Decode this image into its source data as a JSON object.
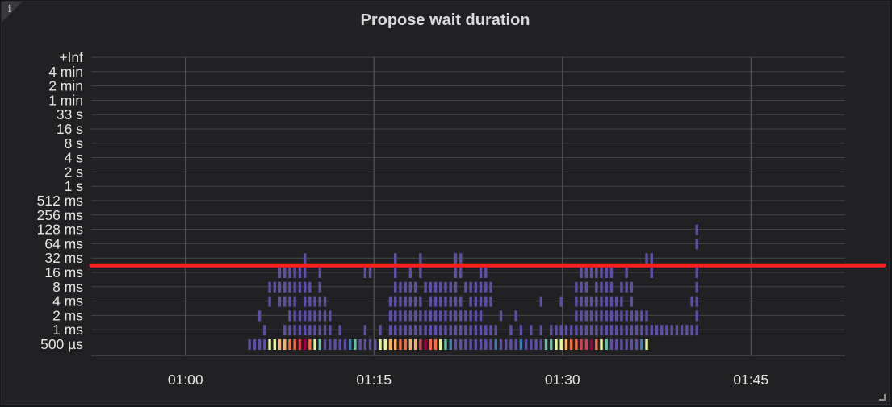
{
  "panel": {
    "title": "Propose wait duration",
    "info_icon": "info-icon",
    "info_glyph": "i"
  },
  "chart_data": {
    "type": "heatmap",
    "title": "Propose wait duration",
    "y_buckets": [
      "500 µs",
      "1 ms",
      "2 ms",
      "4 ms",
      "8 ms",
      "16 ms",
      "32 ms",
      "64 ms",
      "128 ms",
      "256 ms",
      "512 ms",
      "1 s",
      "2 s",
      "4 s",
      "8 s",
      "16 s",
      "33 s",
      "1 min",
      "2 min",
      "4 min",
      "+Inf"
    ],
    "x_ticks": [
      {
        "label": "01:00",
        "t": 60
      },
      {
        "label": "01:15",
        "t": 75
      },
      {
        "label": "01:30",
        "t": 90
      },
      {
        "label": "01:45",
        "t": 105
      }
    ],
    "x_range_minutes": [
      52.5,
      112.5
    ],
    "time_step_minutes": 0.4,
    "first_column_minute": 65.1,
    "threshold_bucket": "32 ms",
    "threshold_color": "#ff1f1f",
    "bottom_row_levels": [
      1,
      1,
      1,
      1,
      4,
      4,
      5,
      5,
      6,
      6,
      7,
      8,
      6,
      4,
      3,
      1,
      1,
      1,
      1,
      1,
      2,
      3,
      1,
      1,
      1,
      1,
      4,
      4,
      5,
      5,
      6,
      6,
      5,
      5,
      7,
      8,
      6,
      6,
      4,
      3,
      2,
      1,
      1,
      1,
      1,
      1,
      1,
      1,
      1,
      2,
      1,
      1,
      1,
      1,
      2,
      1,
      1,
      1,
      1,
      3,
      3,
      4,
      4,
      5,
      6,
      6,
      7,
      7,
      8,
      6,
      4,
      3,
      1,
      1,
      1,
      1,
      1,
      1,
      2,
      4
    ],
    "cells": [
      [
        3,
        1
      ],
      [
        7,
        1
      ],
      [
        8,
        1
      ],
      [
        9,
        1
      ],
      [
        10,
        1
      ],
      [
        11,
        1
      ],
      [
        12,
        1
      ],
      [
        13,
        1
      ],
      [
        14,
        1
      ],
      [
        15,
        1
      ],
      [
        16,
        1
      ],
      [
        18,
        1
      ],
      [
        23,
        1
      ],
      [
        26,
        1
      ],
      [
        28,
        1
      ],
      [
        29,
        1
      ],
      [
        30,
        1
      ],
      [
        31,
        1
      ],
      [
        32,
        1
      ],
      [
        33,
        1
      ],
      [
        34,
        1
      ],
      [
        35,
        1
      ],
      [
        36,
        1
      ],
      [
        37,
        1
      ],
      [
        38,
        1
      ],
      [
        39,
        1
      ],
      [
        40,
        1
      ],
      [
        41,
        1
      ],
      [
        42,
        1
      ],
      [
        43,
        1
      ],
      [
        44,
        1
      ],
      [
        45,
        1
      ],
      [
        46,
        1
      ],
      [
        47,
        1
      ],
      [
        48,
        1
      ],
      [
        49,
        1
      ],
      [
        52,
        1
      ],
      [
        54,
        1
      ],
      [
        56,
        1
      ],
      [
        58,
        1
      ],
      [
        60,
        1
      ],
      [
        61,
        1
      ],
      [
        62,
        1
      ],
      [
        63,
        1
      ],
      [
        64,
        1
      ],
      [
        65,
        1
      ],
      [
        66,
        1
      ],
      [
        67,
        1
      ],
      [
        68,
        1
      ],
      [
        69,
        1
      ],
      [
        70,
        1
      ],
      [
        71,
        1
      ],
      [
        72,
        1
      ],
      [
        73,
        1
      ],
      [
        74,
        1
      ],
      [
        75,
        1
      ],
      [
        76,
        1
      ],
      [
        77,
        1
      ],
      [
        78,
        1
      ],
      [
        79,
        1
      ],
      [
        80,
        1
      ],
      [
        81,
        1
      ],
      [
        82,
        1
      ],
      [
        83,
        1
      ],
      [
        84,
        1
      ],
      [
        85,
        1
      ],
      [
        86,
        1
      ],
      [
        87,
        1
      ],
      [
        88,
        1
      ],
      [
        89,
        1
      ],
      [
        2,
        2
      ],
      [
        8,
        2
      ],
      [
        9,
        2
      ],
      [
        10,
        2
      ],
      [
        11,
        2
      ],
      [
        12,
        2
      ],
      [
        13,
        2
      ],
      [
        14,
        2
      ],
      [
        15,
        2
      ],
      [
        16,
        2
      ],
      [
        28,
        2
      ],
      [
        29,
        2
      ],
      [
        30,
        2
      ],
      [
        31,
        2
      ],
      [
        32,
        2
      ],
      [
        33,
        2
      ],
      [
        34,
        2
      ],
      [
        35,
        2
      ],
      [
        36,
        2
      ],
      [
        37,
        2
      ],
      [
        38,
        2
      ],
      [
        39,
        2
      ],
      [
        40,
        2
      ],
      [
        41,
        2
      ],
      [
        42,
        2
      ],
      [
        43,
        2
      ],
      [
        44,
        2
      ],
      [
        45,
        2
      ],
      [
        46,
        2
      ],
      [
        50,
        2
      ],
      [
        53,
        2
      ],
      [
        65,
        2
      ],
      [
        66,
        2
      ],
      [
        67,
        2
      ],
      [
        68,
        2
      ],
      [
        69,
        2
      ],
      [
        70,
        2
      ],
      [
        71,
        2
      ],
      [
        72,
        2
      ],
      [
        73,
        2
      ],
      [
        74,
        2
      ],
      [
        75,
        2
      ],
      [
        76,
        2
      ],
      [
        77,
        2
      ],
      [
        78,
        2
      ],
      [
        79,
        2
      ],
      [
        89,
        2
      ],
      [
        4,
        3
      ],
      [
        6,
        3
      ],
      [
        7,
        3
      ],
      [
        8,
        3
      ],
      [
        9,
        3
      ],
      [
        11,
        3
      ],
      [
        12,
        3
      ],
      [
        13,
        3
      ],
      [
        14,
        3
      ],
      [
        15,
        3
      ],
      [
        28,
        3
      ],
      [
        29,
        3
      ],
      [
        30,
        3
      ],
      [
        31,
        3
      ],
      [
        32,
        3
      ],
      [
        33,
        3
      ],
      [
        34,
        3
      ],
      [
        36,
        3
      ],
      [
        37,
        3
      ],
      [
        38,
        3
      ],
      [
        39,
        3
      ],
      [
        40,
        3
      ],
      [
        41,
        3
      ],
      [
        42,
        3
      ],
      [
        44,
        3
      ],
      [
        45,
        3
      ],
      [
        46,
        3
      ],
      [
        47,
        3
      ],
      [
        48,
        3
      ],
      [
        58,
        3
      ],
      [
        62,
        3
      ],
      [
        65,
        3
      ],
      [
        66,
        3
      ],
      [
        67,
        3
      ],
      [
        68,
        3
      ],
      [
        69,
        3
      ],
      [
        70,
        3
      ],
      [
        71,
        3
      ],
      [
        72,
        3
      ],
      [
        73,
        3
      ],
      [
        74,
        3
      ],
      [
        76,
        3
      ],
      [
        88,
        3
      ],
      [
        89,
        3
      ],
      [
        4,
        4
      ],
      [
        5,
        4
      ],
      [
        6,
        4
      ],
      [
        7,
        4
      ],
      [
        8,
        4
      ],
      [
        9,
        4
      ],
      [
        10,
        4
      ],
      [
        11,
        4
      ],
      [
        12,
        4
      ],
      [
        14,
        4
      ],
      [
        29,
        4
      ],
      [
        30,
        4
      ],
      [
        31,
        4
      ],
      [
        32,
        4
      ],
      [
        33,
        4
      ],
      [
        35,
        4
      ],
      [
        36,
        4
      ],
      [
        37,
        4
      ],
      [
        38,
        4
      ],
      [
        39,
        4
      ],
      [
        40,
        4
      ],
      [
        41,
        4
      ],
      [
        43,
        4
      ],
      [
        44,
        4
      ],
      [
        45,
        4
      ],
      [
        46,
        4
      ],
      [
        47,
        4
      ],
      [
        48,
        4
      ],
      [
        65,
        4
      ],
      [
        66,
        4
      ],
      [
        67,
        4
      ],
      [
        69,
        4
      ],
      [
        70,
        4
      ],
      [
        71,
        4
      ],
      [
        72,
        4
      ],
      [
        74,
        4
      ],
      [
        75,
        4
      ],
      [
        76,
        4
      ],
      [
        89,
        4
      ],
      [
        6,
        5
      ],
      [
        7,
        5
      ],
      [
        8,
        5
      ],
      [
        9,
        5
      ],
      [
        10,
        5
      ],
      [
        11,
        5
      ],
      [
        14,
        5
      ],
      [
        23,
        5
      ],
      [
        24,
        5
      ],
      [
        29,
        5
      ],
      [
        32,
        5
      ],
      [
        34,
        5
      ],
      [
        41,
        5
      ],
      [
        42,
        5
      ],
      [
        46,
        5
      ],
      [
        47,
        5
      ],
      [
        66,
        5
      ],
      [
        67,
        5
      ],
      [
        68,
        5
      ],
      [
        69,
        5
      ],
      [
        70,
        5
      ],
      [
        71,
        5
      ],
      [
        72,
        5
      ],
      [
        75,
        5
      ],
      [
        80,
        5
      ],
      [
        89,
        5
      ],
      [
        11,
        6
      ],
      [
        29,
        6
      ],
      [
        34,
        6
      ],
      [
        41,
        6
      ],
      [
        42,
        6
      ],
      [
        79,
        6
      ],
      [
        80,
        6
      ],
      [
        89,
        7
      ],
      [
        89,
        8
      ]
    ]
  }
}
